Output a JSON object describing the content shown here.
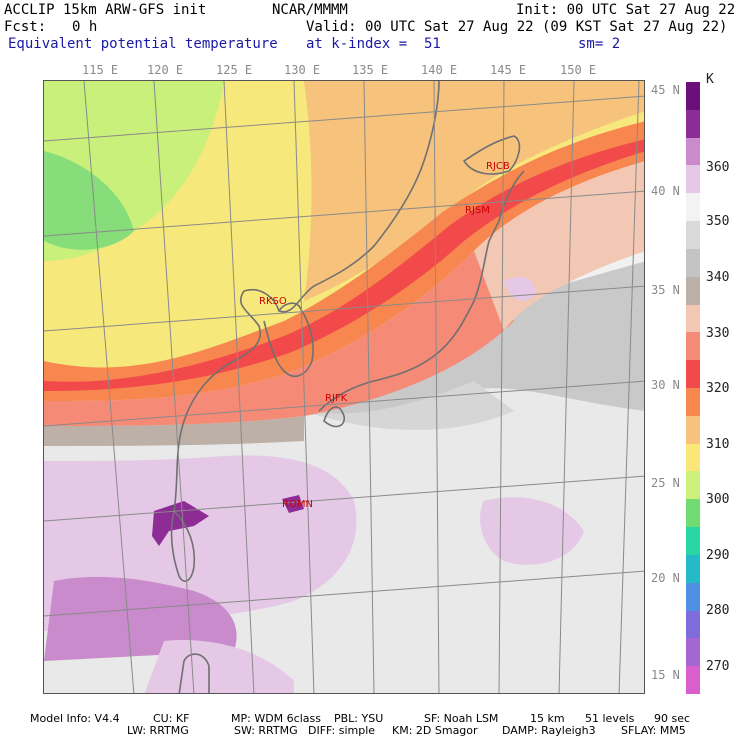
{
  "header": {
    "model_title": "ACCLIP 15km ARW-GFS init",
    "center": "NCAR/MMMM",
    "init": "Init: 00 UTC Sat 27 Aug 22",
    "fcst_label": "Fcst:",
    "fcst_value": "0 h",
    "valid": "Valid: 00 UTC Sat 27 Aug 22 (09 KST Sat 27 Aug 22)",
    "field": "Equivalent potential temperature",
    "level": "at k-index =  51",
    "smooth": "sm= 2"
  },
  "longitudes": [
    "115 E",
    "120 E",
    "125 E",
    "130 E",
    "135 E",
    "140 E",
    "145 E",
    "150 E"
  ],
  "latitudes": [
    "45 N",
    "40 N",
    "35 N",
    "30 N",
    "25 N",
    "20 N",
    "15 N"
  ],
  "colorbar": {
    "unit": "K",
    "labels": [
      "360",
      "350",
      "340",
      "330",
      "320",
      "310",
      "300",
      "290",
      "280",
      "270"
    ],
    "colors": [
      "#6b0f7a",
      "#8e2c96",
      "#c98bcb",
      "#e5c8e6",
      "#f3f3f3",
      "#dadada",
      "#c4c4c4",
      "#bdb0a7",
      "#f2c7b4",
      "#f58a77",
      "#f24a4a",
      "#f7874f",
      "#f6c27c",
      "#fbe67a",
      "#ccf07a",
      "#70dc73",
      "#28d6a4",
      "#25b9c9",
      "#4f90e2",
      "#7e6cdb",
      "#a467d1",
      "#d85fcc"
    ]
  },
  "stations": [
    "RJCB",
    "RJSM",
    "RKSO",
    "RJFK",
    "ROMN"
  ],
  "footer": {
    "line1": [
      "Model Info: V4.4",
      "CU: KF",
      "MP: WDM 6class",
      "PBL: YSU",
      "SF: Noah LSM",
      "15 km",
      "51 levels",
      "90 sec"
    ],
    "line2": [
      "LW: RRTMG",
      "SW: RRTMG",
      "DIFF: simple",
      "KM: 2D Smagor",
      "DAMP: Rayleigh3",
      "SFLAY: MM5"
    ]
  }
}
